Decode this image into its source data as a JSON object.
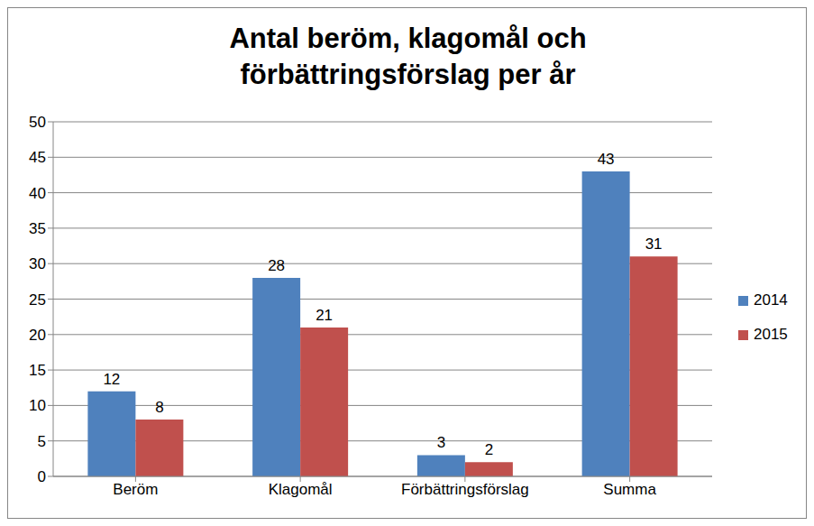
{
  "chart_data": {
    "type": "bar",
    "title": "Antal beröm, klagomål och förbättringsförslag per år",
    "categories": [
      "Beröm",
      "Klagomål",
      "Förbättringsförslag",
      "Summa"
    ],
    "series": [
      {
        "name": "2014",
        "color": "#4f81bd",
        "values": [
          12,
          28,
          3,
          43
        ]
      },
      {
        "name": "2015",
        "color": "#c0504d",
        "values": [
          8,
          21,
          2,
          31
        ]
      }
    ],
    "ylim": [
      0,
      50
    ],
    "yticks": [
      0,
      5,
      10,
      15,
      20,
      25,
      30,
      35,
      40,
      45,
      50
    ],
    "grid": true,
    "legend": "right",
    "data_labels": true
  }
}
